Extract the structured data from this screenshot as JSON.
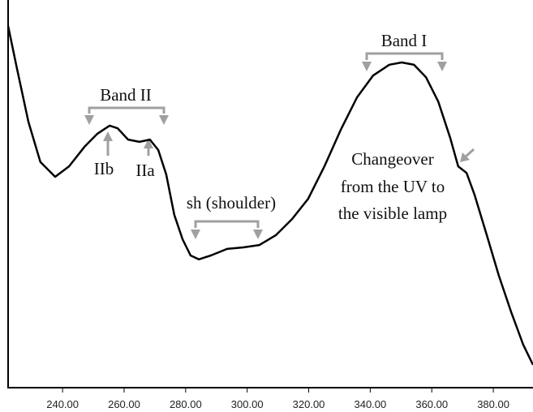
{
  "chart_data": {
    "type": "line",
    "annotations": [
      "Band I",
      "Band II",
      "IIb",
      "IIa",
      "sh (shoulder)",
      "Changeover",
      "from the UV to",
      "the visible lamp"
    ],
    "x": [
      222.3,
      224.9,
      228.9,
      232.8,
      237.6,
      242.1,
      247.3,
      251.3,
      255.3,
      257.9,
      261.3,
      265.0,
      268.4,
      271.1,
      273.7,
      276.3,
      279.0,
      281.6,
      284.3,
      288.2,
      293.5,
      298.8,
      304.0,
      309.3,
      314.6,
      319.8,
      325.1,
      330.4,
      335.7,
      340.9,
      346.2,
      350.2,
      354.2,
      358.1,
      362.1,
      366.0,
      368.6,
      371.3,
      373.9,
      377.9,
      381.8,
      385.8,
      389.7,
      392.9
    ],
    "series": [
      {
        "color": "#000000",
        "values": [
          0.933,
          0.833,
          0.686,
          0.582,
          0.544,
          0.571,
          0.623,
          0.655,
          0.676,
          0.669,
          0.64,
          0.634,
          0.64,
          0.613,
          0.55,
          0.446,
          0.383,
          0.341,
          0.331,
          0.341,
          0.358,
          0.362,
          0.368,
          0.393,
          0.435,
          0.487,
          0.571,
          0.665,
          0.749,
          0.805,
          0.833,
          0.839,
          0.833,
          0.801,
          0.738,
          0.644,
          0.571,
          0.554,
          0.498,
          0.393,
          0.289,
          0.195,
          0.111,
          0.059
        ]
      }
    ],
    "xlim": [
      222.3,
      392.9
    ],
    "ylim": [
      0,
      1
    ],
    "xticks": [
      {
        "value": 240,
        "label": "240.00"
      },
      {
        "value": 260,
        "label": "260.00"
      },
      {
        "value": 280,
        "label": "280.00"
      },
      {
        "value": 300,
        "label": "300.00"
      },
      {
        "value": 320,
        "label": "320.00"
      },
      {
        "value": 340,
        "label": "340.00"
      },
      {
        "value": 360,
        "label": "360.00"
      },
      {
        "value": 380,
        "label": "380.00"
      }
    ]
  }
}
